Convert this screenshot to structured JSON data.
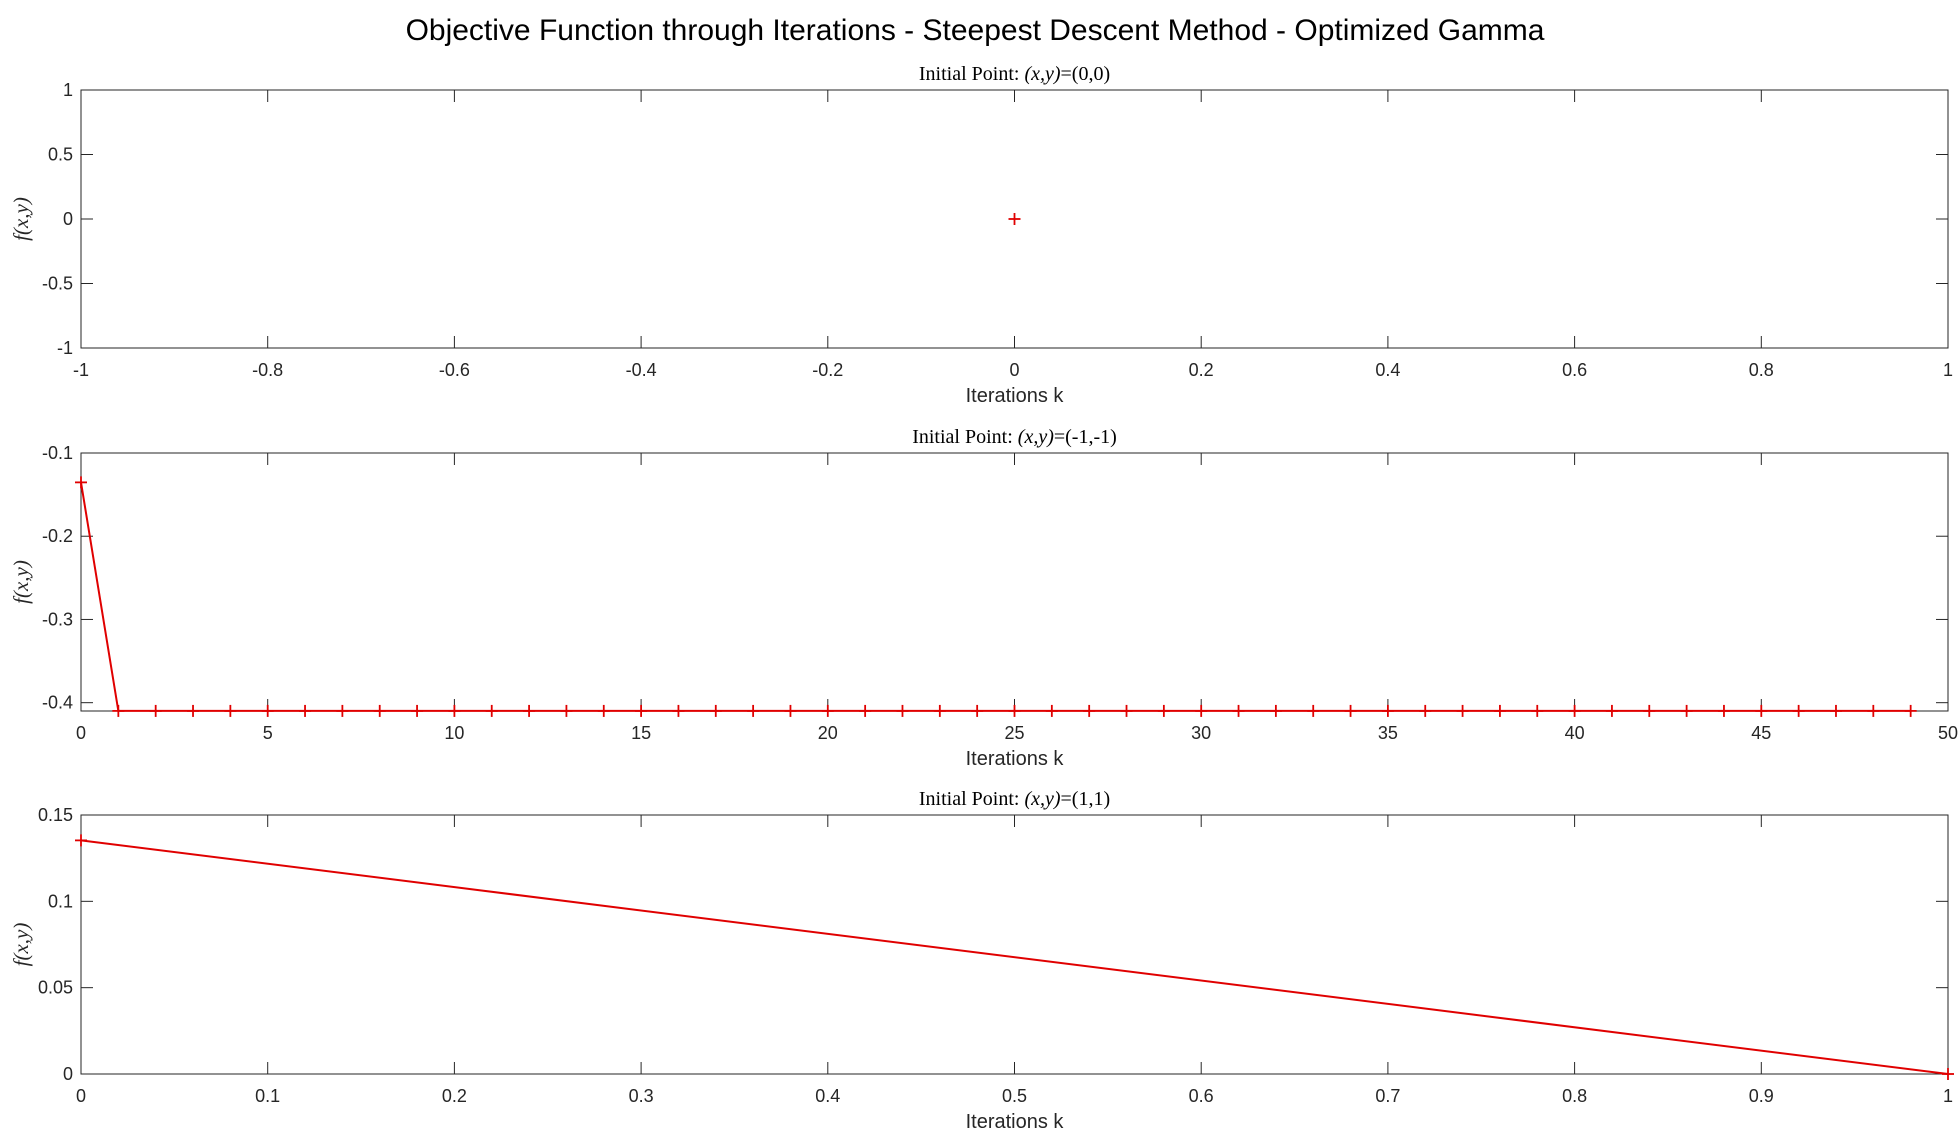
{
  "figure_title": "Objective Function through Iterations - Steepest Descent Method - Optimized Gamma",
  "chart_data": [
    {
      "type": "line",
      "title_prefix": "Initial Point: ",
      "title_math": "(x,y)",
      "title_suffix": "=(0,0)",
      "xlabel": "Iterations k",
      "ylabel": "f(x,y)",
      "xlim": [
        -1,
        1
      ],
      "ylim": [
        -1,
        1
      ],
      "xticks": [
        -1,
        -0.8,
        -0.6,
        -0.4,
        -0.2,
        0,
        0.2,
        0.4,
        0.6,
        0.8,
        1
      ],
      "xtick_labels": [
        "-1",
        "-0.8",
        "-0.6",
        "-0.4",
        "-0.2",
        "0",
        "0.2",
        "0.4",
        "0.6",
        "0.8",
        "1"
      ],
      "yticks": [
        -1,
        -0.5,
        0,
        0.5,
        1
      ],
      "ytick_labels": [
        "-1",
        "-0.5",
        "0",
        "0.5",
        "1"
      ],
      "color": "#e00000",
      "marker": "+",
      "grid": false,
      "x": [
        0
      ],
      "y": [
        0
      ]
    },
    {
      "type": "line",
      "title_prefix": "Initial Point: ",
      "title_math": "(x,y)",
      "title_suffix": "=(-1,-1)",
      "xlabel": "Iterations k",
      "ylabel": "f(x,y)",
      "xlim": [
        0,
        50
      ],
      "ylim": [
        -0.41,
        -0.1
      ],
      "xticks": [
        0,
        5,
        10,
        15,
        20,
        25,
        30,
        35,
        40,
        45,
        50
      ],
      "xtick_labels": [
        "0",
        "5",
        "10",
        "15",
        "20",
        "25",
        "30",
        "35",
        "40",
        "45",
        "50"
      ],
      "yticks": [
        -0.4,
        -0.3,
        -0.2,
        -0.1
      ],
      "ytick_labels": [
        "-0.4",
        "-0.3",
        "-0.2",
        "-0.1"
      ],
      "color": "#e00000",
      "marker": "+",
      "grid": false,
      "x": [
        0,
        1,
        2,
        3,
        4,
        5,
        6,
        7,
        8,
        9,
        10,
        11,
        12,
        13,
        14,
        15,
        16,
        17,
        18,
        19,
        20,
        21,
        22,
        23,
        24,
        25,
        26,
        27,
        28,
        29,
        30,
        31,
        32,
        33,
        34,
        35,
        36,
        37,
        38,
        39,
        40,
        41,
        42,
        43,
        44,
        45,
        46,
        47,
        48,
        49
      ],
      "y": [
        -0.1353,
        -0.4099,
        -0.4099,
        -0.4099,
        -0.4099,
        -0.4099,
        -0.4099,
        -0.4099,
        -0.4099,
        -0.4099,
        -0.4099,
        -0.4099,
        -0.4099,
        -0.4099,
        -0.4099,
        -0.4099,
        -0.4099,
        -0.4099,
        -0.4099,
        -0.4099,
        -0.4099,
        -0.4099,
        -0.4099,
        -0.4099,
        -0.4099,
        -0.4099,
        -0.4099,
        -0.4099,
        -0.4099,
        -0.4099,
        -0.4099,
        -0.4099,
        -0.4099,
        -0.4099,
        -0.4099,
        -0.4099,
        -0.4099,
        -0.4099,
        -0.4099,
        -0.4099,
        -0.4099,
        -0.4099,
        -0.4099,
        -0.4099,
        -0.4099,
        -0.4099,
        -0.4099,
        -0.4099,
        -0.4099,
        -0.4099
      ]
    },
    {
      "type": "line",
      "title_prefix": "Initial Point: ",
      "title_math": "(x,y)",
      "title_suffix": "=(1,1)",
      "xlabel": "Iterations k",
      "ylabel": "f(x,y)",
      "xlim": [
        0,
        1
      ],
      "ylim": [
        0,
        0.15
      ],
      "xticks": [
        0,
        0.1,
        0.2,
        0.3,
        0.4,
        0.5,
        0.6,
        0.7,
        0.8,
        0.9,
        1
      ],
      "xtick_labels": [
        "0",
        "0.1",
        "0.2",
        "0.3",
        "0.4",
        "0.5",
        "0.6",
        "0.7",
        "0.8",
        "0.9",
        "1"
      ],
      "yticks": [
        0,
        0.05,
        0.1,
        0.15
      ],
      "ytick_labels": [
        "0",
        "0.05",
        "0.1",
        "0.15"
      ],
      "color": "#e00000",
      "marker": "+",
      "grid": false,
      "x": [
        0,
        1
      ],
      "y": [
        0.1353,
        0
      ]
    }
  ]
}
